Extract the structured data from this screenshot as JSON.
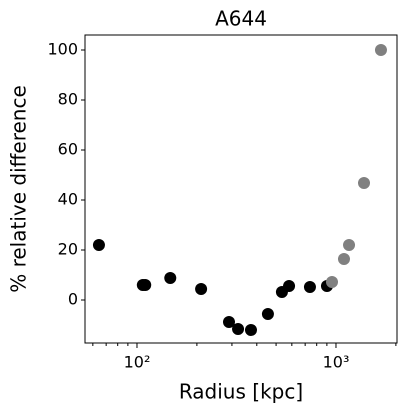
{
  "chart_data": {
    "type": "scatter",
    "title": "A644",
    "x_label": "Radius [kpc]",
    "y_label": "% relative difference",
    "x": [
      64.4,
      107,
      110,
      147,
      210,
      290,
      322,
      374,
      455,
      535,
      581,
      740,
      901,
      955,
      1097,
      1163,
      1383,
      1683
    ],
    "values": [
      22,
      6,
      6,
      8.8,
      4.4,
      -8.8,
      -11.6,
      -12,
      -5.6,
      3.2,
      5.6,
      5.2,
      5.6,
      7.2,
      16.4,
      22,
      46.8,
      100
    ],
    "colors": [
      "#000000",
      "#000000",
      "#000000",
      "#000000",
      "#000000",
      "#000000",
      "#000000",
      "#000000",
      "#000000",
      "#000000",
      "#000000",
      "#000000",
      "#000000",
      "#808080",
      "#808080",
      "#808080",
      "#808080",
      "#808080"
    ],
    "xscale": "log",
    "xlim": [
      54.8,
      2026
    ],
    "ylim": [
      -17.2,
      106
    ],
    "xticks": [
      {
        "value": 100,
        "label": "10²"
      },
      {
        "value": 1000,
        "label": "10³"
      }
    ],
    "xminorticks": [
      60,
      70,
      80,
      90,
      200,
      300,
      400,
      500,
      600,
      700,
      800,
      900,
      2000
    ],
    "yticks": [
      0,
      20,
      40,
      60,
      80,
      100
    ]
  }
}
